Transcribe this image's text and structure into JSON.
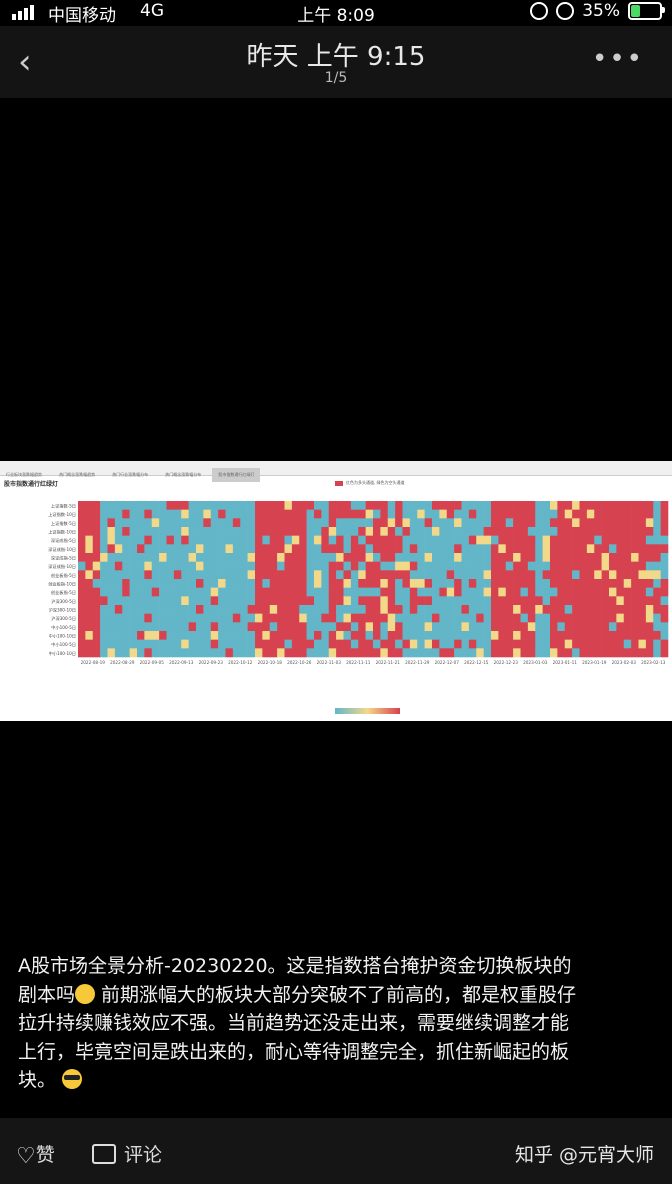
{
  "status_bar": {
    "carrier": "中国移动",
    "network": "4G",
    "time": "上午 8:09",
    "battery": "35%",
    "battery_level": 0.35
  },
  "header": {
    "title": "昨天 上午 9:15",
    "counter": "1/5"
  },
  "photo": {
    "tabs": [
      "行业板块涨跌幅趋势",
      "热门概念涨跌幅趋势",
      "热门行业涨跌幅分布",
      "热门概念涨跌幅分布",
      "股市指数通行红绿灯"
    ],
    "chart_title": "股市指数通行红绿灯",
    "legend_label": "红色为多头通道, 绿色为空头通道",
    "row_labels": [
      "上证指数-5日",
      "上证指数-10日",
      "上证指数-5日",
      "上证指数-10日",
      "深证成指-5日",
      "深证成指-10日",
      "深证成指-5日",
      "深证成指-10日",
      "创业板指-5日",
      "创业板指-10日",
      "创业板指-5日",
      "沪深300-5日",
      "沪深300-10日",
      "沪深300-5日",
      "中小100-5日",
      "中小100-10日",
      "中小100-5日",
      "中小100-10日"
    ],
    "date_labels": [
      "2022-08-19",
      "2022-08-29",
      "2022-09-05",
      "2022-09-13",
      "2022-09-23",
      "2022-10-12",
      "2022-10-18",
      "2022-10-26",
      "2022-11-03",
      "2022-11-11",
      "2022-11-21",
      "2022-11-29",
      "2022-12-07",
      "2022-12-15",
      "2022-12-23",
      "2023-01-03",
      "2023-01-11",
      "2023-01-19",
      "2023-02-03",
      "2023-02-13"
    ]
  },
  "chart_data": {
    "type": "heatmap",
    "title": "股市指数通行红绿灯",
    "legend": "红色为多头通道, 绿色为空头通道",
    "rows": [
      "上证指数-5日",
      "上证指数-10日",
      "上证指数-5日",
      "上证指数-10日",
      "深证成指-5日",
      "深证成指-10日",
      "深证成指-5日",
      "深证成指-10日",
      "创业板指-5日",
      "创业板指-10日",
      "创业板指-5日",
      "沪深300-5日",
      "沪深300-10日",
      "沪深300-5日",
      "中小100-5日",
      "中小100-10日",
      "中小100-5日",
      "中小100-10日"
    ],
    "x_tick_labels": [
      "2022-08-19",
      "2022-08-29",
      "2022-09-05",
      "2022-09-13",
      "2022-09-23",
      "2022-10-12",
      "2022-10-18",
      "2022-10-26",
      "2022-11-03",
      "2022-11-11",
      "2022-11-21",
      "2022-11-29",
      "2022-12-07",
      "2022-12-15",
      "2022-12-23",
      "2023-01-03",
      "2023-01-11",
      "2023-01-19",
      "2023-02-03",
      "2023-02-13"
    ],
    "column_pattern_by_segment": [
      {
        "dates": "2022-08-19",
        "state": "mostly red"
      },
      {
        "dates": "2022-08-29 to 2022-10-12",
        "state": "mostly teal"
      },
      {
        "dates": "2022-10-18 to 2022-10-26",
        "state": "mostly red"
      },
      {
        "dates": "2022-10-26 to 2022-11-03",
        "state": "mostly teal"
      },
      {
        "dates": "2022-11-03 to 2022-11-21",
        "state": "mixed, mostly red"
      },
      {
        "dates": "2022-11-21 to 2022-12-07",
        "state": "mostly teal"
      },
      {
        "dates": "2022-12-07 to 2022-12-23",
        "state": "mostly red"
      },
      {
        "dates": "2022-12-23 to 2023-01-03",
        "state": "mostly teal"
      },
      {
        "dates": "2023-01-03 to 2023-02-03",
        "state": "mostly red"
      },
      {
        "dates": "2023-02-03 to 2023-02-13",
        "state": "mixed"
      }
    ],
    "colors": {
      "red": "#d6424f",
      "teal": "#63b6c8",
      "yellow": "#f2d98a"
    }
  },
  "caption": {
    "line1": "A股市场全景分析-20230220。这是指数搭台掩护资金切换板块的",
    "line2a": "剧本吗",
    "line2b": " 前期涨幅大的板块大部分突破不了前高的，都是权重股仔",
    "line3": "拉升持续赚钱效应不强。当前趋势还没走出来，需要继续调整才能",
    "line4": "上行，毕竟空间是跌出来的，耐心等待调整完全，抓住新崛起的板",
    "line5": "块。"
  },
  "footer": {
    "like_label": "赞",
    "comment_label": "评论",
    "watermark": "知乎 @元宵大师"
  },
  "icons": {
    "back": "chevron-left-icon",
    "more": "more-dots-icon",
    "like": "heart-icon",
    "comment": "comment-icon"
  }
}
